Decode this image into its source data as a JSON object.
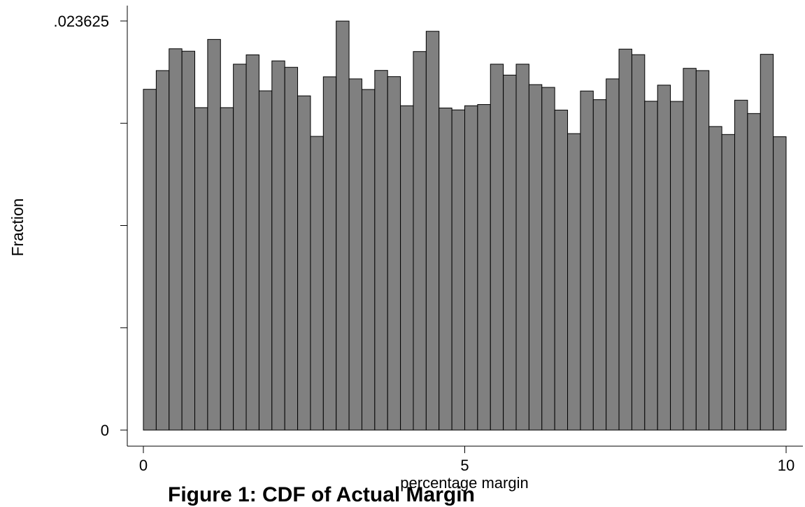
{
  "chart_data": {
    "type": "bar",
    "title": "",
    "xlabel": "percentage margin",
    "ylabel": "Fraction",
    "xlim": [
      0,
      10
    ],
    "ylim": [
      0,
      0.023625
    ],
    "x_ticks": [
      {
        "value": 0,
        "label": "0"
      },
      {
        "value": 5,
        "label": "5"
      },
      {
        "value": 10,
        "label": "10"
      }
    ],
    "y_ticks": [
      {
        "value": 0,
        "label": "0"
      },
      {
        "value": 0.00590625,
        "label": ""
      },
      {
        "value": 0.0118125,
        "label": ""
      },
      {
        "value": 0.01771875,
        "label": ""
      },
      {
        "value": 0.023625,
        "label": ".023625"
      }
    ],
    "bin_width": 0.2,
    "bin_starts": [
      0.0,
      0.2,
      0.4,
      0.6,
      0.8,
      1.0,
      1.2,
      1.4,
      1.6,
      1.8,
      2.0,
      2.2,
      2.4,
      2.6,
      2.8,
      3.0,
      3.2,
      3.4,
      3.6,
      3.8,
      4.0,
      4.2,
      4.4,
      4.6,
      4.8,
      5.0,
      5.2,
      5.4,
      5.6,
      5.8,
      6.0,
      6.2,
      6.4,
      6.6,
      6.8,
      7.0,
      7.2,
      7.4,
      7.6,
      7.8,
      8.0,
      8.2,
      8.4,
      8.6,
      8.8,
      9.0,
      9.2,
      9.4,
      9.6,
      9.8
    ],
    "values": [
      0.01968,
      0.02076,
      0.02202,
      0.02188,
      0.01862,
      0.02256,
      0.01862,
      0.02113,
      0.02167,
      0.01959,
      0.02132,
      0.02095,
      0.0193,
      0.01696,
      0.0204,
      0.02362,
      0.02028,
      0.01967,
      0.02077,
      0.02041,
      0.01873,
      0.02186,
      0.02303,
      0.0186,
      0.01849,
      0.01873,
      0.0188,
      0.02113,
      0.0205,
      0.02113,
      0.01995,
      0.01979,
      0.01848,
      0.01712,
      0.01958,
      0.01908,
      0.02028,
      0.022,
      0.02168,
      0.01899,
      0.01992,
      0.01898,
      0.02089,
      0.02076,
      0.01753,
      0.01707,
      0.01905,
      0.01828,
      0.0217,
      0.01694
    ],
    "bar_color": "#808080",
    "bar_edge_color": "#000000",
    "grid": false,
    "legend": "none"
  },
  "caption_fragment": "Figure 1: CDF of Actual Margin"
}
